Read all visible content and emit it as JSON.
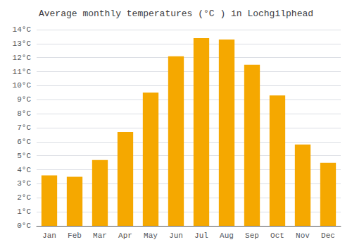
{
  "chart_data": {
    "type": "bar",
    "title": "Average monthly temperatures (°C ) in Lochgilphead",
    "categories": [
      "Jan",
      "Feb",
      "Mar",
      "Apr",
      "May",
      "Jun",
      "Jul",
      "Aug",
      "Sep",
      "Oct",
      "Nov",
      "Dec"
    ],
    "values": [
      3.6,
      3.5,
      4.7,
      6.7,
      9.5,
      12.1,
      13.4,
      13.3,
      11.5,
      9.3,
      5.8,
      4.5
    ],
    "color": "#F5A800",
    "ylim": [
      0,
      14
    ],
    "yticks": [
      {
        "value": 0,
        "label": "0°C"
      },
      {
        "value": 1,
        "label": "1°C"
      },
      {
        "value": 2,
        "label": "2°C"
      },
      {
        "value": 3,
        "label": "3°C"
      },
      {
        "value": 4,
        "label": "4°C"
      },
      {
        "value": 5,
        "label": "5°C"
      },
      {
        "value": 6,
        "label": "6°C"
      },
      {
        "value": 7,
        "label": "7°C"
      },
      {
        "value": 8,
        "label": "8°C"
      },
      {
        "value": 9,
        "label": "9°C"
      },
      {
        "value": 10,
        "label": "10°C"
      },
      {
        "value": 11,
        "label": "11°C"
      },
      {
        "value": 12,
        "label": "12°C"
      },
      {
        "value": 13,
        "label": "13°C"
      },
      {
        "value": 14,
        "label": "14°C"
      }
    ],
    "grid": true
  }
}
